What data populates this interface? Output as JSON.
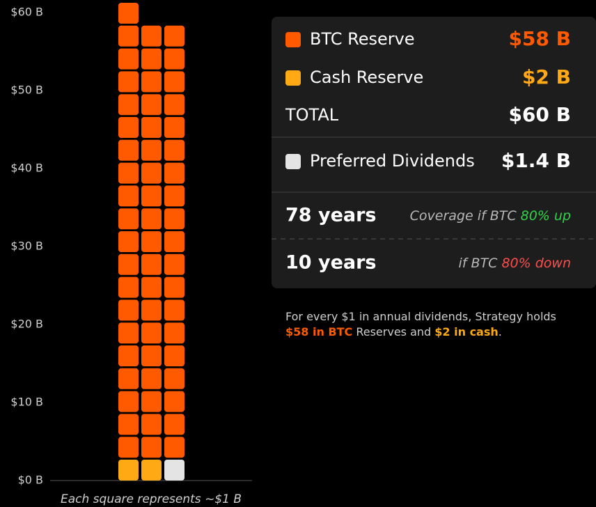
{
  "chart_data": {
    "type": "waffle",
    "ylim": [
      0,
      60
    ],
    "yticks": [
      {
        "value": 0,
        "label": "$0 B"
      },
      {
        "value": 10,
        "label": "$10 B"
      },
      {
        "value": 20,
        "label": "$20 B"
      },
      {
        "value": 30,
        "label": "$30 B"
      },
      {
        "value": 40,
        "label": "$40 B"
      },
      {
        "value": 50,
        "label": "$50 B"
      },
      {
        "value": 60,
        "label": "$60 B"
      }
    ],
    "series": [
      {
        "name": "BTC Reserve",
        "color": "#ff5a00",
        "value": 58,
        "value_label": "$58 B"
      },
      {
        "name": "Cash Reserve",
        "color": "#ffa914",
        "value": 2,
        "value_label": "$2 B"
      },
      {
        "name": "Preferred Dividends",
        "color": "#e4e4e4",
        "value": 1.4,
        "value_label": "$1.4 B"
      }
    ],
    "total": {
      "label": "TOTAL",
      "value": 60,
      "value_label": "$60 B"
    },
    "coverage": [
      {
        "years": "78 years",
        "text": "Coverage if BTC",
        "scenario": "80% up",
        "color": "#2fd34a"
      },
      {
        "years": "10 years",
        "text": "if BTC",
        "scenario": "80% down",
        "color": "#ff4d4d"
      }
    ],
    "note": [
      "For every $1 in annual dividends, Strategy holds",
      "$58 in BTC",
      " Reserves and ",
      "$2 in cash",
      "."
    ],
    "footnote": "Each square represents ~$1 B"
  }
}
